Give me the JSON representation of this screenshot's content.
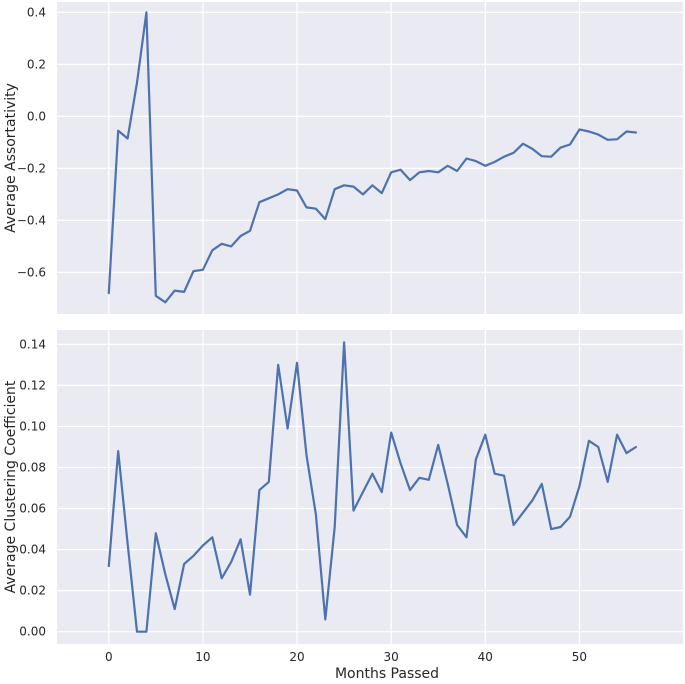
{
  "figure": {
    "xlabel": "Months Passed",
    "style": {
      "panel_bg": "#eaeaf2",
      "grid": "#ffffff",
      "line": "#4c72b0",
      "text": "#262626"
    }
  },
  "chart_data": [
    {
      "type": "line",
      "title": "",
      "xlabel": "",
      "ylabel": "Average Assortativity",
      "xlim": [
        -5.5,
        61
      ],
      "ylim": [
        -0.76,
        0.44
      ],
      "x_ticks": [
        0,
        10,
        20,
        30,
        40,
        50
      ],
      "y_ticks": [
        -0.6,
        -0.4,
        -0.2,
        0.0,
        0.2,
        0.4
      ],
      "y_tick_labels": [
        "−0.6",
        "−0.4",
        "−0.2",
        "0.0",
        "0.2",
        "0.4"
      ],
      "grid": true,
      "series": [
        {
          "color": "#4c72b0",
          "x": [
            0,
            1,
            2,
            3,
            4,
            5,
            6,
            7,
            8,
            9,
            10,
            11,
            12,
            13,
            14,
            15,
            16,
            17,
            18,
            19,
            20,
            21,
            22,
            23,
            24,
            25,
            26,
            27,
            28,
            29,
            30,
            31,
            32,
            33,
            34,
            35,
            36,
            37,
            38,
            39,
            40,
            41,
            42,
            43,
            44,
            45,
            46,
            47,
            48,
            49,
            50,
            51,
            52,
            53,
            54,
            55,
            56
          ],
          "y": [
            -0.68,
            -0.055,
            -0.085,
            0.13,
            0.4,
            -0.69,
            -0.715,
            -0.67,
            -0.675,
            -0.595,
            -0.59,
            -0.515,
            -0.49,
            -0.5,
            -0.46,
            -0.44,
            -0.33,
            -0.315,
            -0.3,
            -0.28,
            -0.285,
            -0.35,
            -0.355,
            -0.395,
            -0.28,
            -0.265,
            -0.27,
            -0.3,
            -0.265,
            -0.295,
            -0.215,
            -0.205,
            -0.245,
            -0.215,
            -0.21,
            -0.215,
            -0.19,
            -0.21,
            -0.162,
            -0.172,
            -0.19,
            -0.175,
            -0.155,
            -0.14,
            -0.105,
            -0.125,
            -0.153,
            -0.155,
            -0.12,
            -0.108,
            -0.05,
            -0.058,
            -0.07,
            -0.09,
            -0.088,
            -0.058,
            -0.062
          ]
        }
      ]
    },
    {
      "type": "line",
      "title": "",
      "xlabel": "Months Passed",
      "ylabel": "Average Clustering Coefficient",
      "xlim": [
        -5.5,
        61
      ],
      "ylim": [
        -0.006,
        0.147
      ],
      "x_ticks": [
        0,
        10,
        20,
        30,
        40,
        50
      ],
      "y_ticks": [
        0.0,
        0.02,
        0.04,
        0.06,
        0.08,
        0.1,
        0.12,
        0.14
      ],
      "y_tick_labels": [
        "0.00",
        "0.02",
        "0.04",
        "0.06",
        "0.08",
        "0.10",
        "0.12",
        "0.14"
      ],
      "grid": true,
      "series": [
        {
          "color": "#4c72b0",
          "x": [
            0,
            1,
            2,
            3,
            4,
            5,
            6,
            7,
            8,
            9,
            10,
            11,
            12,
            13,
            14,
            15,
            16,
            17,
            18,
            19,
            20,
            21,
            22,
            23,
            24,
            25,
            26,
            27,
            28,
            29,
            30,
            31,
            32,
            33,
            34,
            35,
            36,
            37,
            38,
            39,
            40,
            41,
            42,
            43,
            44,
            45,
            46,
            47,
            48,
            49,
            50,
            51,
            52,
            53,
            54,
            55,
            56
          ],
          "y": [
            0.032,
            0.088,
            0.043,
            0.0,
            0.0,
            0.048,
            0.028,
            0.011,
            0.033,
            0.037,
            0.042,
            0.046,
            0.026,
            0.034,
            0.045,
            0.018,
            0.069,
            0.073,
            0.13,
            0.099,
            0.131,
            0.086,
            0.057,
            0.006,
            0.051,
            0.141,
            0.059,
            0.068,
            0.077,
            0.068,
            0.097,
            0.082,
            0.069,
            0.075,
            0.074,
            0.091,
            0.072,
            0.052,
            0.046,
            0.084,
            0.096,
            0.077,
            0.076,
            0.052,
            0.058,
            0.064,
            0.072,
            0.05,
            0.051,
            0.056,
            0.071,
            0.093,
            0.09,
            0.073,
            0.096,
            0.087,
            0.09
          ]
        }
      ]
    }
  ]
}
